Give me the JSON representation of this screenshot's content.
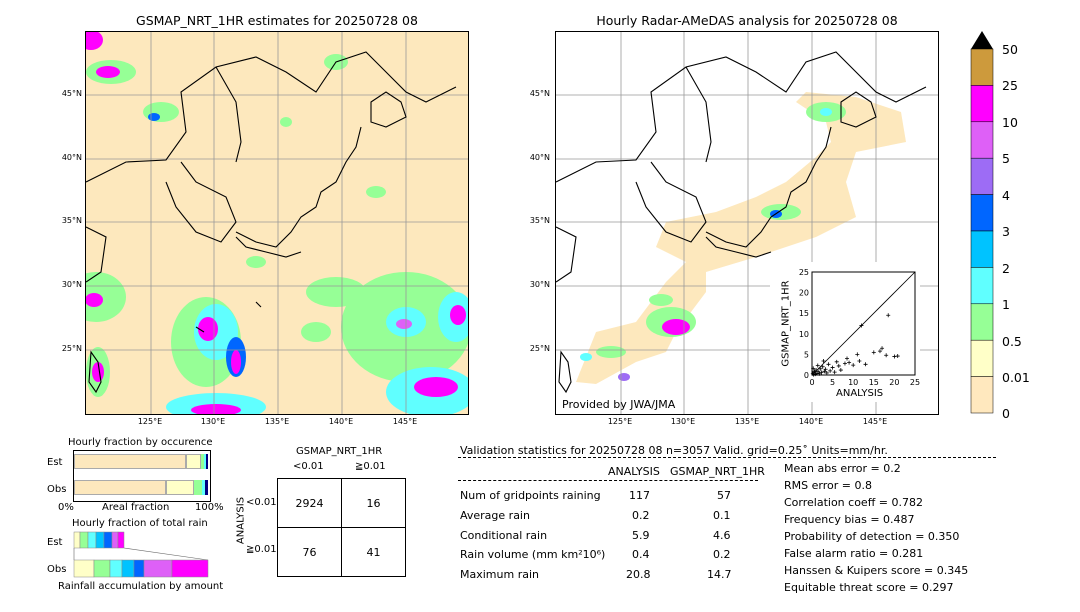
{
  "left_map": {
    "title": "GSMAP_NRT_1HR estimates for 20250728 08",
    "lat_labels": [
      "45°N",
      "40°N",
      "35°N",
      "30°N",
      "25°N"
    ],
    "lon_labels": [
      "125°E",
      "130°E",
      "135°E",
      "140°E",
      "145°E"
    ]
  },
  "right_map": {
    "title": "Hourly Radar-AMeDAS analysis for 20250728 08",
    "lat_labels": [
      "45°N",
      "40°N",
      "35°N",
      "30°N",
      "25°N"
    ],
    "lon_labels": [
      "125°E",
      "130°E",
      "135°E",
      "140°E",
      "145°E"
    ],
    "credit": "Provided by JWA/JMA"
  },
  "colorbar": {
    "ticks": [
      "50",
      "25",
      "10",
      "5",
      "4",
      "3",
      "2",
      "1",
      "0.5",
      "0.01",
      "0"
    ],
    "colors": [
      "#cd9a3c",
      "#ff00ff",
      "#de60f7",
      "#9d6cf5",
      "#0066ff",
      "#00c3ff",
      "#60ffff",
      "#96ff96",
      "#ffffc8",
      "#ffe8be"
    ]
  },
  "occurrence": {
    "title": "Hourly fraction by occurence",
    "rows": [
      "Est",
      "Obs"
    ],
    "axis_left": "0%",
    "axis_mid": "Areal fraction",
    "axis_right": "100%"
  },
  "accumulation": {
    "title": "Hourly fraction of total rain",
    "rows": [
      "Est",
      "Obs"
    ],
    "footer": "Rainfall accumulation by amount"
  },
  "contingency": {
    "col_title": "GSMAP_NRT_1HR",
    "col_labels": [
      "<0.01",
      "≧0.01"
    ],
    "row_title": "ANALYSIS",
    "row_labels": [
      "<0.01",
      "≧0.01"
    ],
    "cells": [
      [
        "2924",
        "16"
      ],
      [
        "76",
        "41"
      ]
    ]
  },
  "validation": {
    "header": "Validation statistics for 20250728 08  n=3057 Valid. grid=0.25˚ Units=mm/hr.",
    "col_analysis": "ANALYSIS",
    "col_gsmap": "GSMAP_NRT_1HR",
    "rows": [
      {
        "label": "Num of gridpoints raining",
        "analysis": "117",
        "gsmap": "57"
      },
      {
        "label": "Average rain",
        "analysis": "0.2",
        "gsmap": "0.1"
      },
      {
        "label": "Conditional rain",
        "analysis": "5.9",
        "gsmap": "4.6"
      },
      {
        "label": "Rain volume (mm km²10⁶)",
        "analysis": "0.4",
        "gsmap": "0.2"
      },
      {
        "label": "Maximum rain",
        "analysis": "20.8",
        "gsmap": "14.7"
      }
    ],
    "scores": [
      "Mean abs error =    0.2",
      "RMS error =    0.8",
      "Correlation coeff =  0.782",
      "Frequency bias =  0.487",
      "Probability of detection =  0.350",
      "False alarm ratio =  0.281",
      "Hanssen & Kuipers score =  0.345",
      "Equitable threat score =  0.297"
    ]
  },
  "chart_data": {
    "type": "scatter",
    "xlabel": "ANALYSIS",
    "ylabel": "GSMAP_NRT_1HR",
    "xlim": [
      0,
      25
    ],
    "ylim": [
      0,
      25
    ],
    "ticks": [
      "0",
      "5",
      "10",
      "15",
      "20",
      "25"
    ],
    "points": [
      [
        0.2,
        0.3
      ],
      [
        0.4,
        0.1
      ],
      [
        0.5,
        0.6
      ],
      [
        0.8,
        0.2
      ],
      [
        1.0,
        1.2
      ],
      [
        1.2,
        0.4
      ],
      [
        1.5,
        0.8
      ],
      [
        1.8,
        0.3
      ],
      [
        2.0,
        1.5
      ],
      [
        2.3,
        0.6
      ],
      [
        2.6,
        2.0
      ],
      [
        3.0,
        0.9
      ],
      [
        3.3,
        1.4
      ],
      [
        3.6,
        0.5
      ],
      [
        4.0,
        2.6
      ],
      [
        4.4,
        1.0
      ],
      [
        5.0,
        1.8
      ],
      [
        5.5,
        0.7
      ],
      [
        6.0,
        3.2
      ],
      [
        6.5,
        2.2
      ],
      [
        7.0,
        1.2
      ],
      [
        8.0,
        2.8
      ],
      [
        8.5,
        4.0
      ],
      [
        9.0,
        3.0
      ],
      [
        10.0,
        2.4
      ],
      [
        11.0,
        5.0
      ],
      [
        11.5,
        3.4
      ],
      [
        12.0,
        12.0
      ],
      [
        13.0,
        2.6
      ],
      [
        15.0,
        5.5
      ],
      [
        16.5,
        5.8
      ],
      [
        17.0,
        6.5
      ],
      [
        18.0,
        4.8
      ],
      [
        18.5,
        14.5
      ],
      [
        20.0,
        4.5
      ],
      [
        20.8,
        4.6
      ],
      [
        0.6,
        0.9
      ],
      [
        1.4,
        2.3
      ],
      [
        2.8,
        3.4
      ],
      [
        0.3,
        1.6
      ]
    ]
  }
}
